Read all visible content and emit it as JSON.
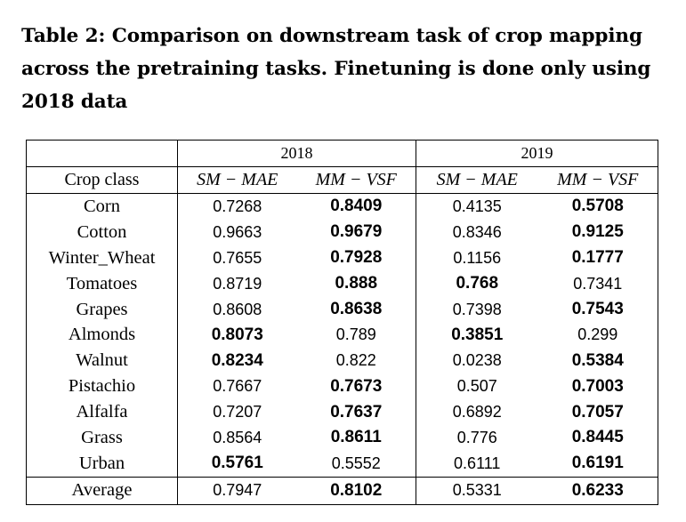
{
  "caption": "Table 2: Comparison on downstream task of crop mapping across the pretraining tasks. Finetuning is done only using 2018 data",
  "table": {
    "years": [
      "2018",
      "2019"
    ],
    "row_header": "Crop class",
    "models": [
      "SM − MAE",
      "MM − VSF",
      "SM − MAE",
      "MM − VSF"
    ],
    "rows": [
      {
        "name": "Corn",
        "values": [
          "0.7268",
          "0.8409",
          "0.4135",
          "0.5708"
        ],
        "bold": [
          false,
          true,
          false,
          true
        ]
      },
      {
        "name": "Cotton",
        "values": [
          "0.9663",
          "0.9679",
          "0.8346",
          "0.9125"
        ],
        "bold": [
          false,
          true,
          false,
          true
        ]
      },
      {
        "name": "Winter_Wheat",
        "values": [
          "0.7655",
          "0.7928",
          "0.1156",
          "0.1777"
        ],
        "bold": [
          false,
          true,
          false,
          true
        ]
      },
      {
        "name": "Tomatoes",
        "values": [
          "0.8719",
          "0.888",
          "0.768",
          "0.7341"
        ],
        "bold": [
          false,
          true,
          true,
          false
        ]
      },
      {
        "name": "Grapes",
        "values": [
          "0.8608",
          "0.8638",
          "0.7398",
          "0.7543"
        ],
        "bold": [
          false,
          true,
          false,
          true
        ]
      },
      {
        "name": "Almonds",
        "values": [
          "0.8073",
          "0.789",
          "0.3851",
          "0.299"
        ],
        "bold": [
          true,
          false,
          true,
          false
        ]
      },
      {
        "name": "Walnut",
        "values": [
          "0.8234",
          "0.822",
          "0.0238",
          "0.5384"
        ],
        "bold": [
          true,
          false,
          false,
          true
        ]
      },
      {
        "name": "Pistachio",
        "values": [
          "0.7667",
          "0.7673",
          "0.507",
          "0.7003"
        ],
        "bold": [
          false,
          true,
          false,
          true
        ]
      },
      {
        "name": "Alfalfa",
        "values": [
          "0.7207",
          "0.7637",
          "0.6892",
          "0.7057"
        ],
        "bold": [
          false,
          true,
          false,
          true
        ]
      },
      {
        "name": "Grass",
        "values": [
          "0.8564",
          "0.8611",
          "0.776",
          "0.8445"
        ],
        "bold": [
          false,
          true,
          false,
          true
        ]
      },
      {
        "name": "Urban",
        "values": [
          "0.5761",
          "0.5552",
          "0.6111",
          "0.6191"
        ],
        "bold": [
          true,
          false,
          false,
          true
        ]
      }
    ],
    "average": {
      "name": "Average",
      "values": [
        "0.7947",
        "0.8102",
        "0.5331",
        "0.6233"
      ],
      "bold": [
        false,
        true,
        false,
        true
      ]
    }
  }
}
